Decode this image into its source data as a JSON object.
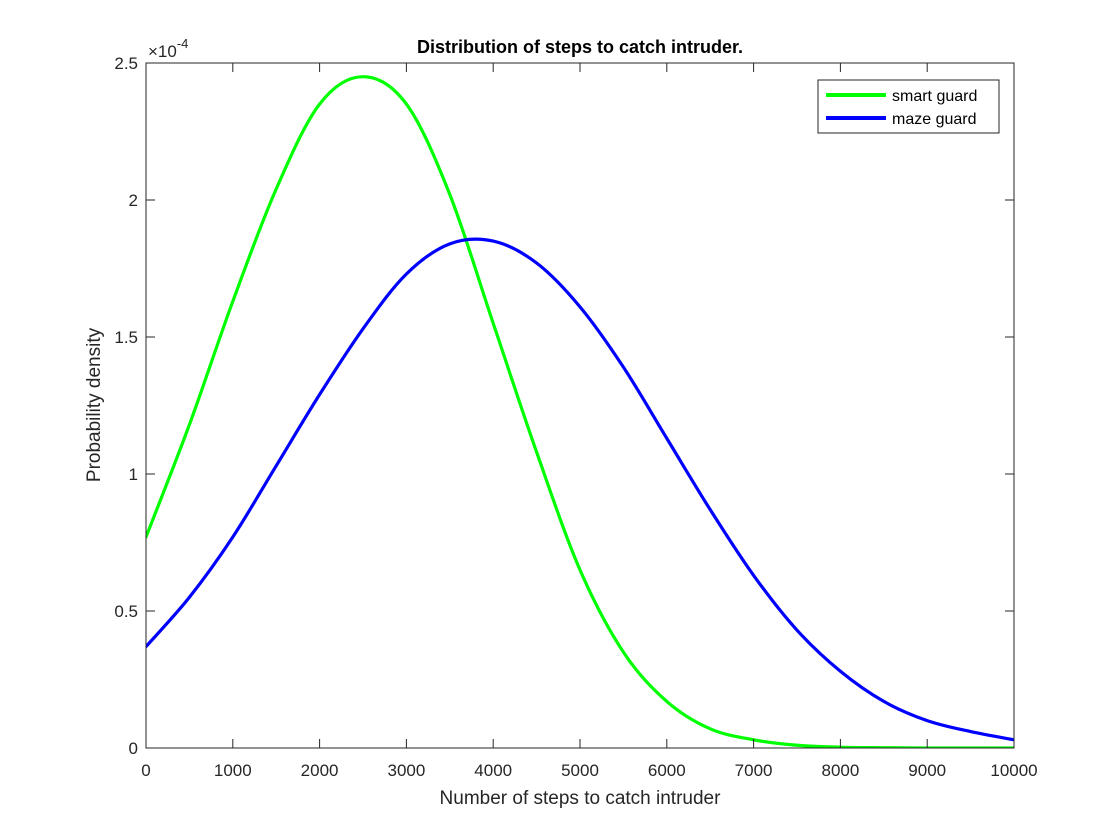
{
  "chart_data": {
    "type": "line",
    "title": "Distribution of steps to catch intruder.",
    "xlabel": "Number of steps to catch intruder",
    "ylabel": "Probability density",
    "xlim": [
      0,
      10000
    ],
    "ylim": [
      0,
      2.5
    ],
    "y_exponent_label": "×10",
    "y_exponent": "-4",
    "xticks": [
      0,
      1000,
      2000,
      3000,
      4000,
      5000,
      6000,
      7000,
      8000,
      9000,
      10000
    ],
    "xtick_labels": [
      "0",
      "1000",
      "2000",
      "3000",
      "4000",
      "5000",
      "6000",
      "7000",
      "8000",
      "9000",
      "10000"
    ],
    "yticks": [
      0,
      0.5,
      1,
      1.5,
      2,
      2.5
    ],
    "ytick_labels": [
      "0",
      "0.5",
      "1",
      "1.5",
      "2",
      "2.5"
    ],
    "legend_position": "top-right",
    "series": [
      {
        "name": "smart guard",
        "color": "#00ff00",
        "x": [
          0,
          500,
          1000,
          1500,
          2000,
          2500,
          3000,
          3500,
          4000,
          4500,
          5000,
          5500,
          6000,
          6500,
          7000,
          7500,
          8000,
          8500,
          9000,
          9500,
          10000
        ],
        "values": [
          0.77,
          1.18,
          1.63,
          2.04,
          2.35,
          2.45,
          2.35,
          2.02,
          1.55,
          1.08,
          0.65,
          0.35,
          0.17,
          0.07,
          0.03,
          0.01,
          0.003,
          0.001,
          0.0,
          0.0,
          0.0
        ]
      },
      {
        "name": "maze guard",
        "color": "#0000ff",
        "x": [
          0,
          500,
          1000,
          1500,
          2000,
          2500,
          3000,
          3500,
          4000,
          4500,
          5000,
          5500,
          6000,
          6500,
          7000,
          7500,
          8000,
          8500,
          9000,
          9500,
          10000
        ],
        "values": [
          0.37,
          0.55,
          0.77,
          1.03,
          1.29,
          1.53,
          1.73,
          1.84,
          1.85,
          1.77,
          1.61,
          1.39,
          1.13,
          0.87,
          0.63,
          0.43,
          0.28,
          0.17,
          0.1,
          0.06,
          0.03
        ]
      }
    ]
  }
}
